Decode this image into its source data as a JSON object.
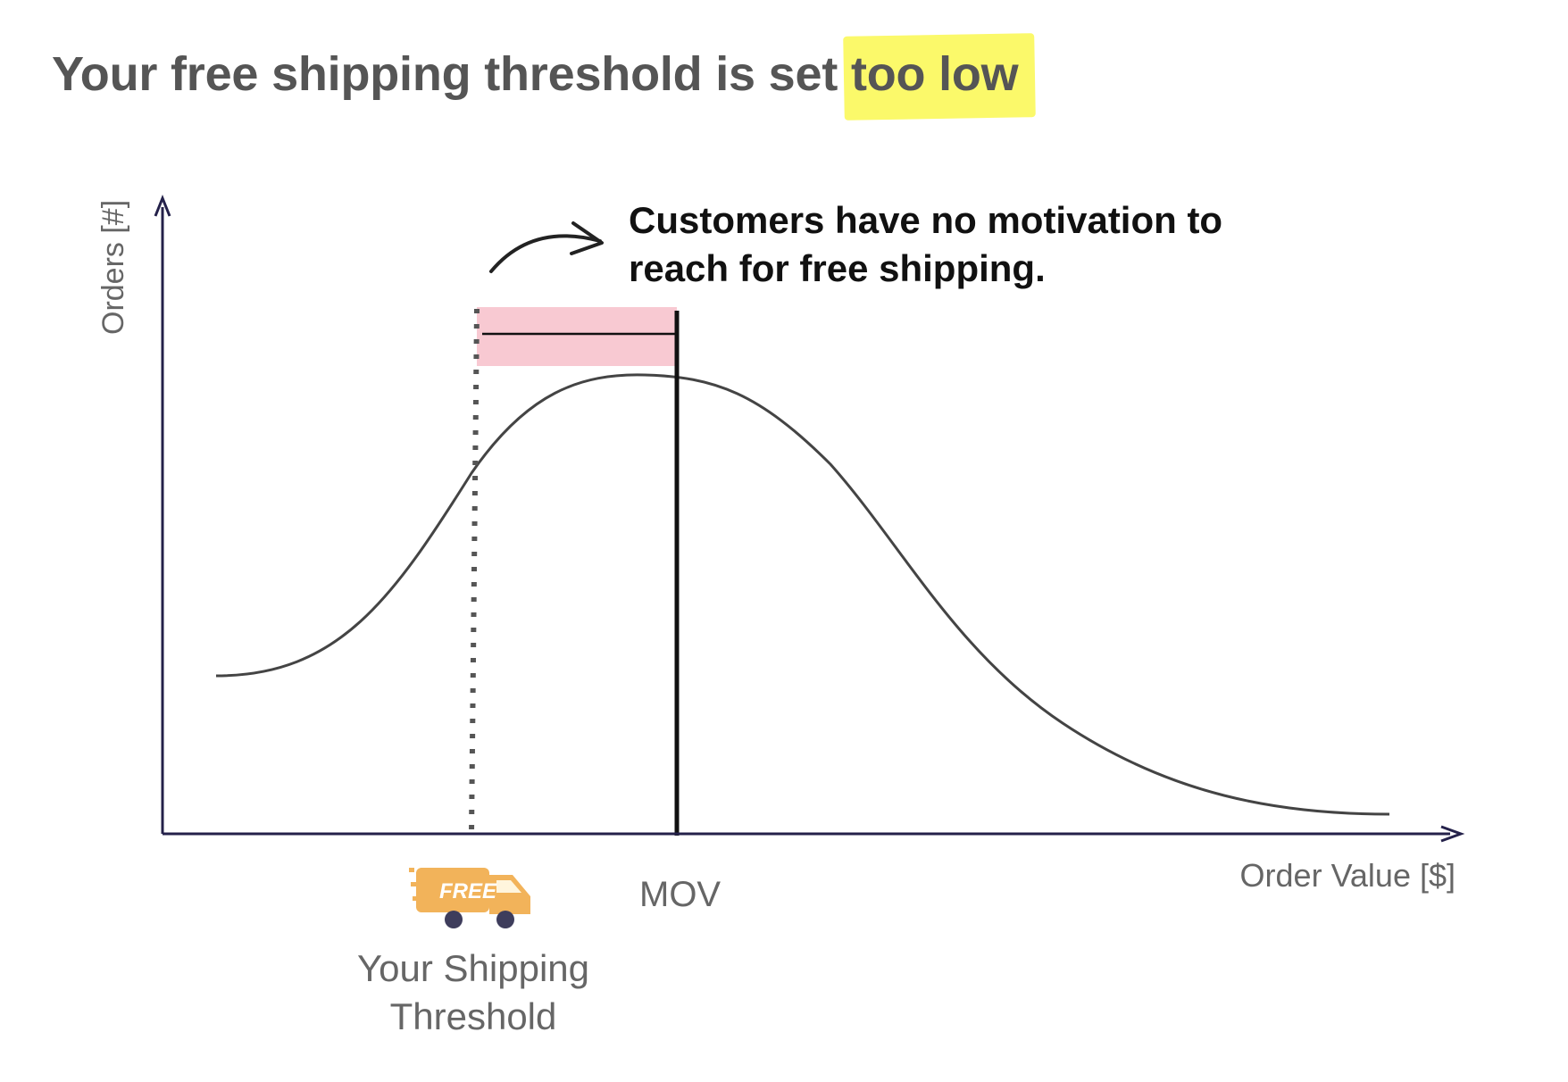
{
  "header": {
    "title_prefix": "Your free shipping threshold is set ",
    "title_highlight": "too low"
  },
  "callout": {
    "line1": "Customers have no motivation to",
    "line2": "reach for free shipping."
  },
  "axes": {
    "y_label": "Orders [#]",
    "x_label": "Order Value [$]"
  },
  "markers": {
    "mov_label": "MOV",
    "threshold_label_line1": "Your Shipping",
    "threshold_label_line2": "Threshold",
    "truck_badge": "FREE"
  },
  "colors": {
    "title": "#555555",
    "highlight": "#fbf96a",
    "shaded_zone": "#f8c9d2",
    "curve": "#444444",
    "axis": "#24214a",
    "truck": "#f2b35a",
    "wheel": "#3e3d5c"
  },
  "icons": {
    "arrow": "curved-arrow-icon",
    "truck": "delivery-truck-icon"
  }
}
